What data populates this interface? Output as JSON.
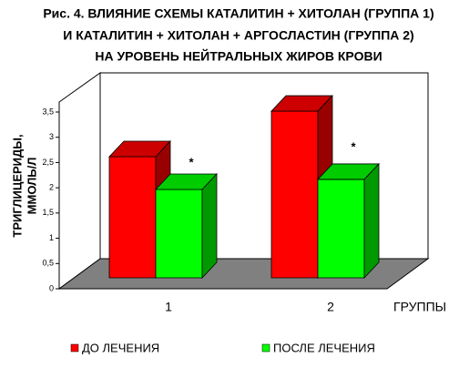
{
  "chart_data": {
    "type": "bar3d",
    "title": [
      "Рис. 4. ВЛИЯНИЕ СХЕМЫ КАТАЛИТИН + ХИТОЛАН (ГРУППА 1)",
      "И КАТАЛИТИН + ХИТОЛАН + АРГОСЛАСТИН (ГРУППА 2)",
      "НА УРОВЕНЬ НЕЙТРАЛЬНЫХ ЖИРОВ КРОВИ"
    ],
    "y_label": [
      "ТРИГЛИЦЕРИДЫ,",
      "ММОЛЬ/Л"
    ],
    "x_label": "ГРУППЫ",
    "categories": [
      "1",
      "2"
    ],
    "series": [
      {
        "name": "ДО ЛЕЧЕНИЯ",
        "color": "#ff0000",
        "values": [
          2.4,
          3.3
        ]
      },
      {
        "name": "ПОСЛЕ ЛЕЧЕНИЯ",
        "color": "#00ff00",
        "values": [
          1.75,
          1.95
        ]
      }
    ],
    "annotations": [
      "*",
      "*"
    ],
    "ylim": [
      0,
      3.5
    ],
    "yticks": [
      0,
      {
        "value": 0.5,
        "label": "0,5"
      },
      1,
      {
        "value": 1.5,
        "label": "1,5"
      },
      2,
      {
        "value": 2.5,
        "label": "2,5"
      },
      3,
      {
        "value": 3.5,
        "label": "3,5"
      }
    ]
  }
}
